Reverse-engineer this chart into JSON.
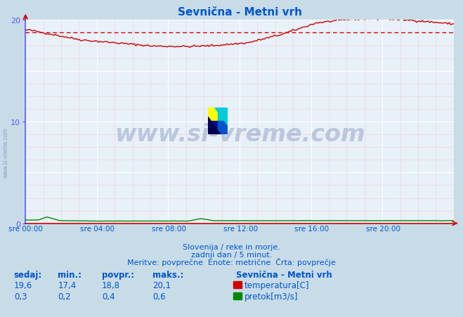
{
  "title": "Sevnična - Metni vrh",
  "bg_color": "#c8dce8",
  "plot_bg_color": "#e8f0f8",
  "grid_white_color": "#ffffff",
  "grid_pink_color": "#ffaaaa",
  "text_color": "#0055cc",
  "subtitle_color": "#0055cc",
  "axis_left_color": "#5555ff",
  "axis_bottom_color": "#cc0000",
  "temp_color": "#cc0000",
  "flow_color": "#008800",
  "temp_avg": 18.8,
  "temp_min": 17.4,
  "temp_max": 20.1,
  "flow_min": 0.2,
  "flow_max": 0.6,
  "watermark_text": "www.si-vreme.com",
  "watermark_color": "#1a3a8a",
  "watermark_alpha": 0.22,
  "legend_title": "Sevnična - Metni vrh",
  "legend_items": [
    {
      "label": "temperatura[C]",
      "color": "#cc0000"
    },
    {
      "label": "pretok[m3/s]",
      "color": "#008800"
    }
  ],
  "subtitle_lines": [
    "Slovenija / reke in morje.",
    "zadnji dan / 5 minut.",
    "Meritve: povprečne  Enote: metrične  Črta: povprečje"
  ],
  "xlabel_ticks": [
    "sre 00:00",
    "sre 04:00",
    "sre 08:00",
    "sre 12:00",
    "sre 16:00",
    "sre 20:00"
  ],
  "table_headers": [
    "sedaj:",
    "min.:",
    "povpr.:",
    "maks.:"
  ],
  "table_rows": [
    [
      "19,6",
      "17,4",
      "18,8",
      "20,1"
    ],
    [
      "0,3",
      "0,2",
      "0,4",
      "0,6"
    ]
  ],
  "n_points": 288,
  "ymin": 0,
  "ymax": 20,
  "yticks": [
    0,
    10,
    20
  ]
}
